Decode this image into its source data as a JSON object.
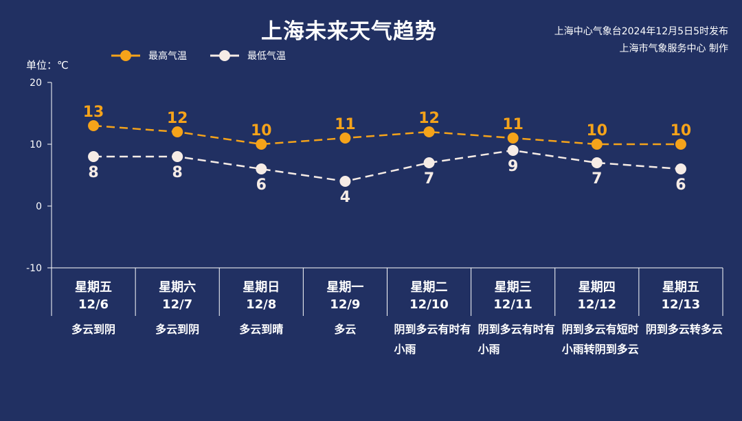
{
  "header": {
    "title": "上海未来天气趋势",
    "source_line1": "上海中心气象台2024年12月5日5时发布",
    "source_line2": "上海市气象服务中心 制作",
    "unit_label": "单位：℃"
  },
  "legend": {
    "high_label": "最高气温",
    "low_label": "最低气温"
  },
  "colors": {
    "background": "#213062",
    "high": "#f5a31a",
    "low": "#f6ece6",
    "axis": "#ffffff"
  },
  "days": [
    {
      "weekday": "星期五",
      "date": "12/6",
      "weather": "多云到阴"
    },
    {
      "weekday": "星期六",
      "date": "12/7",
      "weather": "多云到阴"
    },
    {
      "weekday": "星期日",
      "date": "12/8",
      "weather": "多云到晴"
    },
    {
      "weekday": "星期一",
      "date": "12/9",
      "weather": "多云"
    },
    {
      "weekday": "星期二",
      "date": "12/10",
      "weather": "阴到多云有时有小雨"
    },
    {
      "weekday": "星期三",
      "date": "12/11",
      "weather": "阴到多云有时有小雨"
    },
    {
      "weekday": "星期四",
      "date": "12/12",
      "weather": "阴到多云有短时小雨转阴到多云"
    },
    {
      "weekday": "星期五",
      "date": "12/13",
      "weather": "阴到多云转多云"
    }
  ],
  "chart_data": {
    "type": "line",
    "title": "上海未来天气趋势",
    "ylabel": "单位：℃",
    "ylim": [
      -10,
      20
    ],
    "yticks": [
      20,
      10,
      0,
      -10
    ],
    "categories": [
      "12/6",
      "12/7",
      "12/8",
      "12/9",
      "12/10",
      "12/11",
      "12/12",
      "12/13"
    ],
    "series": [
      {
        "name": "最高气温",
        "values": [
          13,
          12,
          10,
          11,
          12,
          11,
          10,
          10
        ]
      },
      {
        "name": "最低气温",
        "values": [
          8,
          8,
          6,
          4,
          7,
          9,
          7,
          6
        ]
      }
    ],
    "grid": false,
    "legend_position": "top-left",
    "line_style": "dashed"
  }
}
